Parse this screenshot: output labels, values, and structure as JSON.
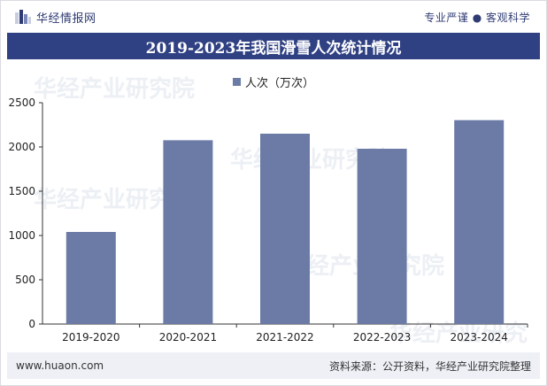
{
  "header": {
    "brand_name": "华经情报网",
    "tagline": "专业严谨 ● 客观科学"
  },
  "watermark": {
    "text": "华经产业研究院",
    "url": "www.huaon.com"
  },
  "footer": {
    "website": "www.huaon.com",
    "source": "资料来源：公开资料，华经产业研究院整理"
  },
  "colors": {
    "title_band": "#304183",
    "bar": "#6b7ba6",
    "brand_text": "#2f3b73"
  },
  "chart_data": {
    "type": "bar",
    "title": "2019-2023年我国滑雪人次统计情况",
    "categories": [
      "2019-2020",
      "2020-2021",
      "2021-2022",
      "2022-2023",
      "2023-2024"
    ],
    "series": [
      {
        "name": "人次（万次）",
        "values": [
          1040,
          2076,
          2150,
          1980,
          2303
        ]
      }
    ],
    "yticks": [
      0,
      500,
      1000,
      1500,
      2000,
      2500
    ],
    "ylim": [
      0,
      2500
    ],
    "xlabel": "",
    "ylabel": "",
    "legend": "top-center",
    "grid": false
  }
}
